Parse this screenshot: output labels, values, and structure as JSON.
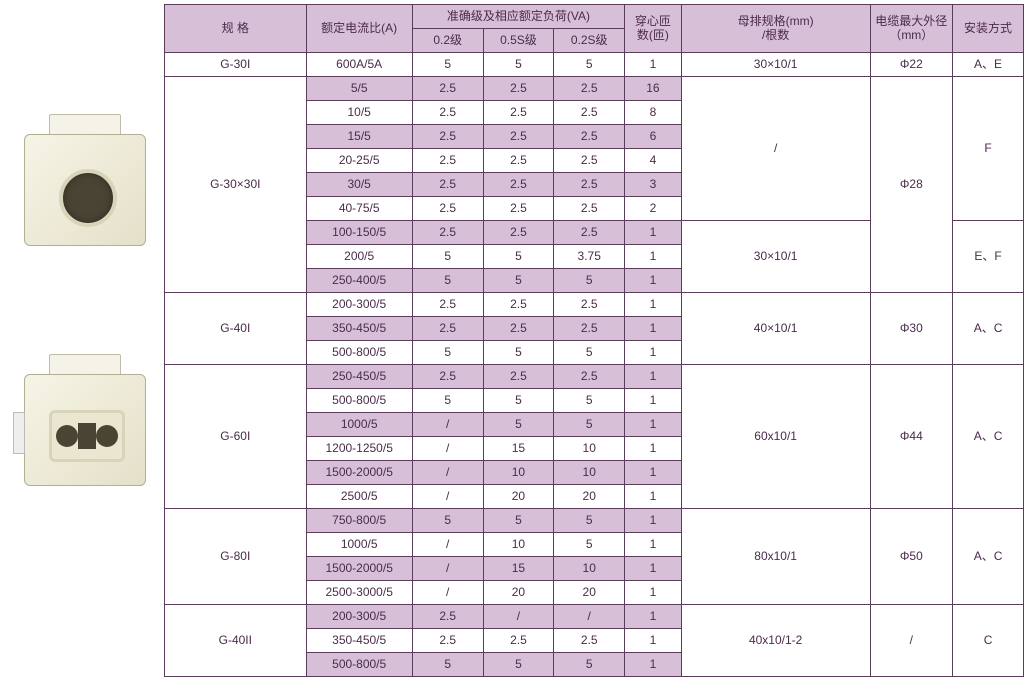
{
  "colors": {
    "header_bg": "#d8bfd8",
    "shaded_row_bg": "#d8bfd8",
    "plain_row_bg": "#ffffff",
    "border": "#5a3c5a",
    "text": "#4a2b4a"
  },
  "headers": {
    "spec": "规 格",
    "ratio": "额定电流比(A)",
    "accuracy": "准确级及相应额定负荷(VA)",
    "acc_02": "0.2级",
    "acc_05s": "0.5S级",
    "acc_02s": "0.2S级",
    "turns": "穿心匝数(匝)",
    "busbar": "母排规格(mm)\n/根数",
    "cable": "电缆最大外径（mm）",
    "mount": "安装方式"
  },
  "models": {
    "g30i": "G-30I",
    "g30x30i": "G-30×30I",
    "g40i": "G-40I",
    "g60i": "G-60I",
    "g80i": "G-80I",
    "g40ii": "G-40II"
  },
  "busbars": {
    "b30_10_1": "30×10/1",
    "slash": "/",
    "b40_10_1": "40×10/1",
    "b60_10_1": "60x10/1",
    "b80_10_1": "80x10/1",
    "b40_10_1_2": "40x10/1-2"
  },
  "cables": {
    "d22": "Φ22",
    "d28": "Φ28",
    "d30": "Φ30",
    "d44": "Φ44",
    "d50": "Φ50",
    "slash": "/"
  },
  "mounts": {
    "ae": "A、E",
    "f": "F",
    "ef": "E、F",
    "ac": "A、C",
    "c": "C"
  },
  "rows": {
    "r0": {
      "ratio": "600A/5A",
      "a02": "5",
      "a05s": "5",
      "a02s": "5",
      "turns": "1"
    },
    "r1": {
      "ratio": "5/5",
      "a02": "2.5",
      "a05s": "2.5",
      "a02s": "2.5",
      "turns": "16"
    },
    "r2": {
      "ratio": "10/5",
      "a02": "2.5",
      "a05s": "2.5",
      "a02s": "2.5",
      "turns": "8"
    },
    "r3": {
      "ratio": "15/5",
      "a02": "2.5",
      "a05s": "2.5",
      "a02s": "2.5",
      "turns": "6"
    },
    "r4": {
      "ratio": "20-25/5",
      "a02": "2.5",
      "a05s": "2.5",
      "a02s": "2.5",
      "turns": "4"
    },
    "r5": {
      "ratio": "30/5",
      "a02": "2.5",
      "a05s": "2.5",
      "a02s": "2.5",
      "turns": "3"
    },
    "r6": {
      "ratio": "40-75/5",
      "a02": "2.5",
      "a05s": "2.5",
      "a02s": "2.5",
      "turns": "2"
    },
    "r7": {
      "ratio": "100-150/5",
      "a02": "2.5",
      "a05s": "2.5",
      "a02s": "2.5",
      "turns": "1"
    },
    "r8": {
      "ratio": "200/5",
      "a02": "5",
      "a05s": "5",
      "a02s": "3.75",
      "turns": "1"
    },
    "r9": {
      "ratio": "250-400/5",
      "a02": "5",
      "a05s": "5",
      "a02s": "5",
      "turns": "1"
    },
    "r10": {
      "ratio": "200-300/5",
      "a02": "2.5",
      "a05s": "2.5",
      "a02s": "2.5",
      "turns": "1"
    },
    "r11": {
      "ratio": "350-450/5",
      "a02": "2.5",
      "a05s": "2.5",
      "a02s": "2.5",
      "turns": "1"
    },
    "r12": {
      "ratio": "500-800/5",
      "a02": "5",
      "a05s": "5",
      "a02s": "5",
      "turns": "1"
    },
    "r13": {
      "ratio": "250-450/5",
      "a02": "2.5",
      "a05s": "2.5",
      "a02s": "2.5",
      "turns": "1"
    },
    "r14": {
      "ratio": "500-800/5",
      "a02": "5",
      "a05s": "5",
      "a02s": "5",
      "turns": "1"
    },
    "r15": {
      "ratio": "1000/5",
      "a02": "/",
      "a05s": "5",
      "a02s": "5",
      "turns": "1"
    },
    "r16": {
      "ratio": "1200-1250/5",
      "a02": "/",
      "a05s": "15",
      "a02s": "10",
      "turns": "1"
    },
    "r17": {
      "ratio": "1500-2000/5",
      "a02": "/",
      "a05s": "10",
      "a02s": "10",
      "turns": "1"
    },
    "r18": {
      "ratio": "2500/5",
      "a02": "/",
      "a05s": "20",
      "a02s": "20",
      "turns": "1"
    },
    "r19": {
      "ratio": "750-800/5",
      "a02": "5",
      "a05s": "5",
      "a02s": "5",
      "turns": "1"
    },
    "r20": {
      "ratio": "1000/5",
      "a02": "/",
      "a05s": "10",
      "a02s": "5",
      "turns": "1"
    },
    "r21": {
      "ratio": "1500-2000/5",
      "a02": "/",
      "a05s": "15",
      "a02s": "10",
      "turns": "1"
    },
    "r22": {
      "ratio": "2500-3000/5",
      "a02": "/",
      "a05s": "20",
      "a02s": "20",
      "turns": "1"
    },
    "r23": {
      "ratio": "200-300/5",
      "a02": "2.5",
      "a05s": "/",
      "a02s": "/",
      "turns": "1"
    },
    "r24": {
      "ratio": "350-450/5",
      "a02": "2.5",
      "a05s": "2.5",
      "a02s": "2.5",
      "turns": "1"
    },
    "r25": {
      "ratio": "500-800/5",
      "a02": "5",
      "a05s": "5",
      "a02s": "5",
      "turns": "1"
    }
  }
}
